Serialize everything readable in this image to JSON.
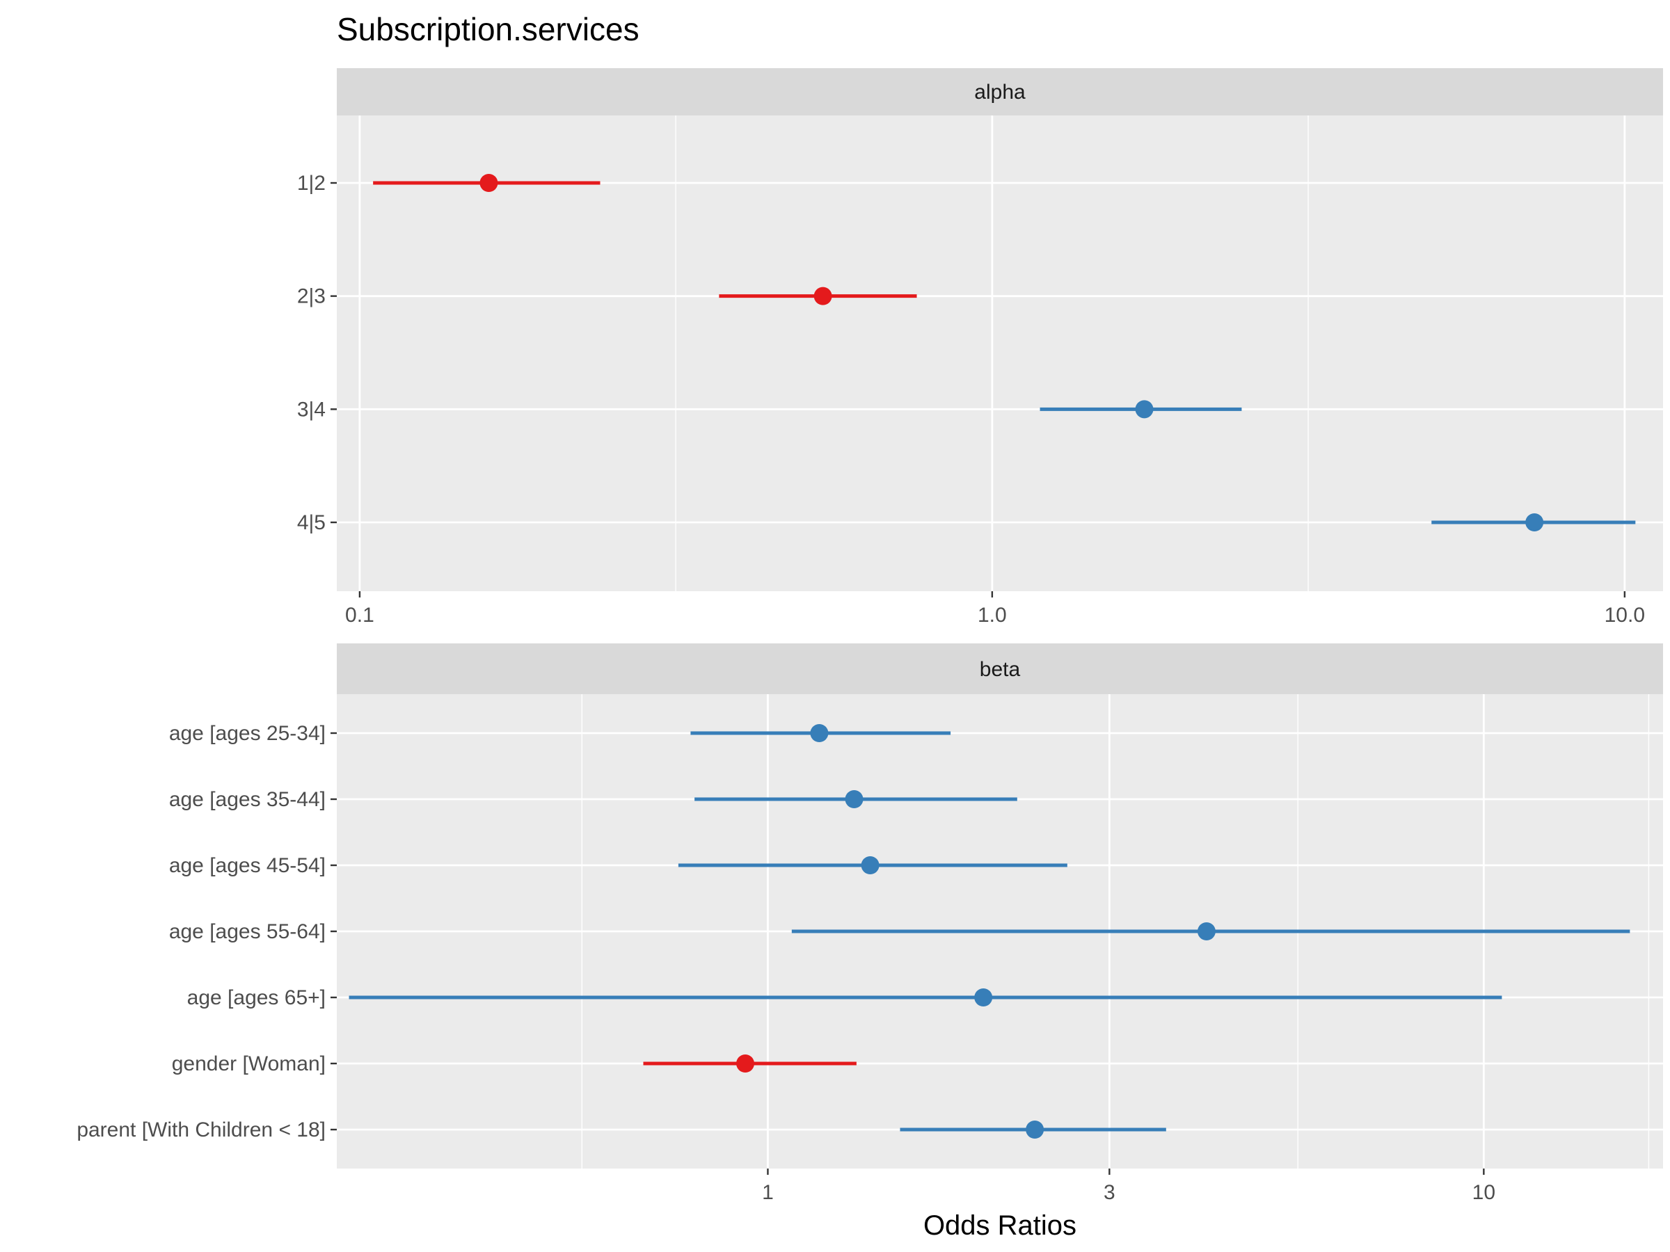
{
  "chart_data": {
    "type": "forest",
    "title": "Subscription.services",
    "xlabel": "Odds Ratios",
    "x_scale": "log",
    "colors": {
      "negative": "#E41A1C",
      "positive": "#377EB8"
    },
    "grid": true,
    "legend": "none",
    "panels": [
      {
        "strip": "alpha",
        "xlim": [
          0.092,
          11.5
        ],
        "ticks": [
          {
            "value": 0.1,
            "label": "0.1"
          },
          {
            "value": 1.0,
            "label": "1.0"
          },
          {
            "value": 10.0,
            "label": "10.0"
          }
        ],
        "minor_grid": [
          0.316,
          3.16
        ],
        "terms": [
          {
            "label": "1|2",
            "estimate": 0.16,
            "conf_low": 0.105,
            "conf_high": 0.24
          },
          {
            "label": "2|3",
            "estimate": 0.54,
            "conf_low": 0.37,
            "conf_high": 0.76
          },
          {
            "label": "3|4",
            "estimate": 1.74,
            "conf_low": 1.19,
            "conf_high": 2.48
          },
          {
            "label": "4|5",
            "estimate": 7.2,
            "conf_low": 4.95,
            "conf_high": 10.4
          }
        ]
      },
      {
        "strip": "beta",
        "xlim": [
          0.25,
          17.8
        ],
        "ticks": [
          {
            "value": 1,
            "label": "1"
          },
          {
            "value": 3,
            "label": "3"
          },
          {
            "value": 10,
            "label": "10"
          }
        ],
        "minor_grid": [
          0.55,
          5.5,
          17.0
        ],
        "terms": [
          {
            "label": "age [ages 25-34]",
            "estimate": 1.18,
            "conf_low": 0.78,
            "conf_high": 1.8
          },
          {
            "label": "age [ages 35-44]",
            "estimate": 1.32,
            "conf_low": 0.79,
            "conf_high": 2.23
          },
          {
            "label": "age [ages 45-54]",
            "estimate": 1.39,
            "conf_low": 0.75,
            "conf_high": 2.62
          },
          {
            "label": "age [ages 55-64]",
            "estimate": 4.1,
            "conf_low": 1.08,
            "conf_high": 16.0
          },
          {
            "label": "age [ages 65+]",
            "estimate": 2.0,
            "conf_low": 0.26,
            "conf_high": 10.6
          },
          {
            "label": "gender [Woman]",
            "estimate": 0.93,
            "conf_low": 0.67,
            "conf_high": 1.33
          },
          {
            "label": "parent [With Children < 18]",
            "estimate": 2.36,
            "conf_low": 1.53,
            "conf_high": 3.6
          }
        ]
      }
    ]
  }
}
